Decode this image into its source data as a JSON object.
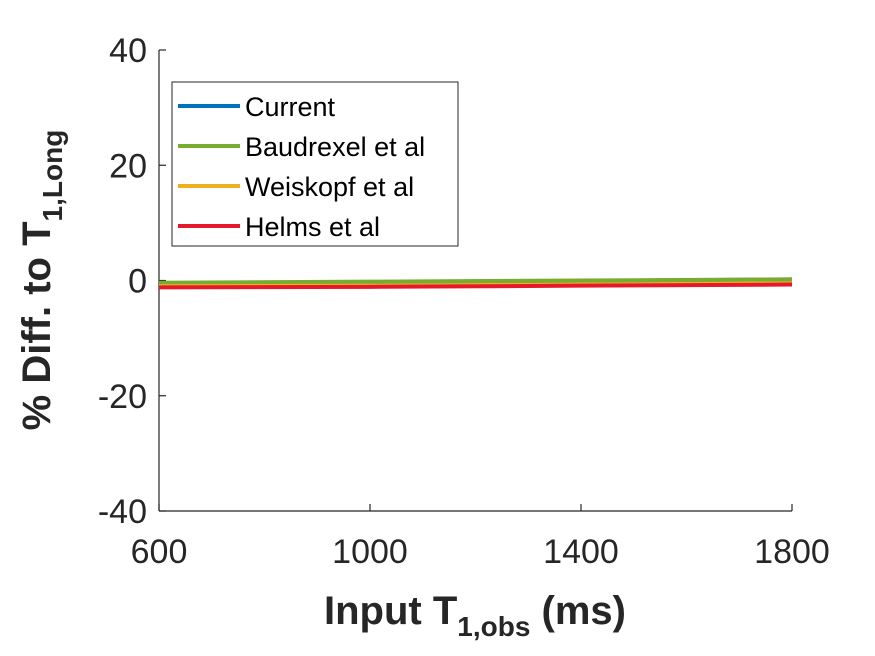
{
  "chart_data": {
    "type": "line",
    "xlabel": {
      "main": "Input T",
      "sub": "1,obs",
      "unit": " (ms)"
    },
    "ylabel": {
      "main": "% Diff. to T",
      "sub": "1,Long"
    },
    "xlim": [
      600,
      1800
    ],
    "ylim": [
      -40,
      40
    ],
    "xticks": [
      600,
      1000,
      1400,
      1800
    ],
    "yticks": [
      -40,
      -20,
      0,
      20,
      40
    ],
    "grid": false,
    "legend_position": "top-left",
    "x": [
      600,
      1000,
      1400,
      1800
    ],
    "series": [
      {
        "name": "Current",
        "color": "#0072BD",
        "values": [
          -0.6,
          -0.4,
          -0.1,
          0.2
        ]
      },
      {
        "name": "Baudrexel et al",
        "color": "#77AC30",
        "values": [
          -0.4,
          -0.2,
          0.0,
          0.2
        ]
      },
      {
        "name": "Weiskopf et al",
        "color": "#EDB120",
        "values": [
          -1.0,
          -0.9,
          -0.7,
          -0.5
        ]
      },
      {
        "name": "Helms et al",
        "color": "#E6192B",
        "values": [
          -1.2,
          -1.1,
          -0.9,
          -0.7
        ]
      }
    ]
  }
}
